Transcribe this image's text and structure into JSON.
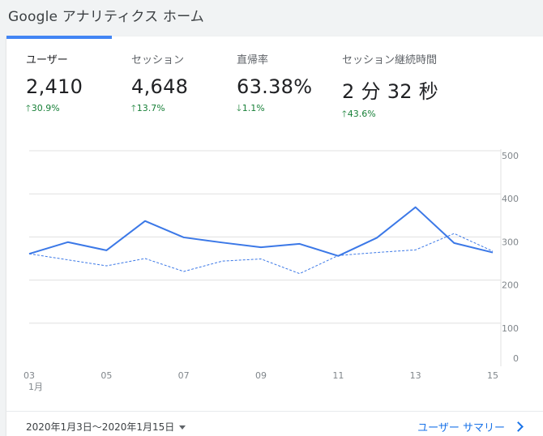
{
  "page": {
    "title": "Google アナリティクス ホーム"
  },
  "colors": {
    "accent": "#4285f4",
    "series_line": "#3b78e7",
    "increase": "#188038",
    "link": "#1a73e8",
    "grid": "#e0e0e0"
  },
  "metrics": [
    {
      "label": "ユーザー",
      "value": "2,410",
      "change": "30.9%",
      "direction": "up",
      "selected": true
    },
    {
      "label": "セッション",
      "value": "4,648",
      "change": "13.7%",
      "direction": "up",
      "selected": false
    },
    {
      "label": "直帰率",
      "value": "63.38%",
      "change": "1.1%",
      "direction": "down",
      "selected": false
    },
    {
      "label": "セッション継続時間",
      "value": "2 分 32 秒",
      "change": "43.6%",
      "direction": "up",
      "selected": false
    }
  ],
  "chart_data": {
    "type": "line",
    "x": [
      "03",
      "04",
      "05",
      "06",
      "07",
      "08",
      "09",
      "10",
      "11",
      "12",
      "13",
      "14",
      "15"
    ],
    "x_tick_labels": [
      "03",
      "05",
      "07",
      "09",
      "11",
      "13",
      "15"
    ],
    "x_month_label": "1月",
    "y_tick_labels": [
      "0",
      "100",
      "200",
      "300",
      "400",
      "500"
    ],
    "ylim": [
      0,
      500
    ],
    "grid": true,
    "series": [
      {
        "values": [
          261,
          288,
          269,
          337,
          299,
          287,
          276,
          284,
          256,
          298,
          369,
          286,
          264
        ],
        "style": "solid"
      },
      {
        "values": [
          261,
          247,
          233,
          250,
          220,
          244,
          249,
          215,
          257,
          264,
          270,
          308,
          267
        ],
        "style": "dashed"
      }
    ]
  },
  "footer": {
    "date_range": "2020年1月3日～2020年1月15日",
    "report_link": "ユーザー サマリー"
  }
}
